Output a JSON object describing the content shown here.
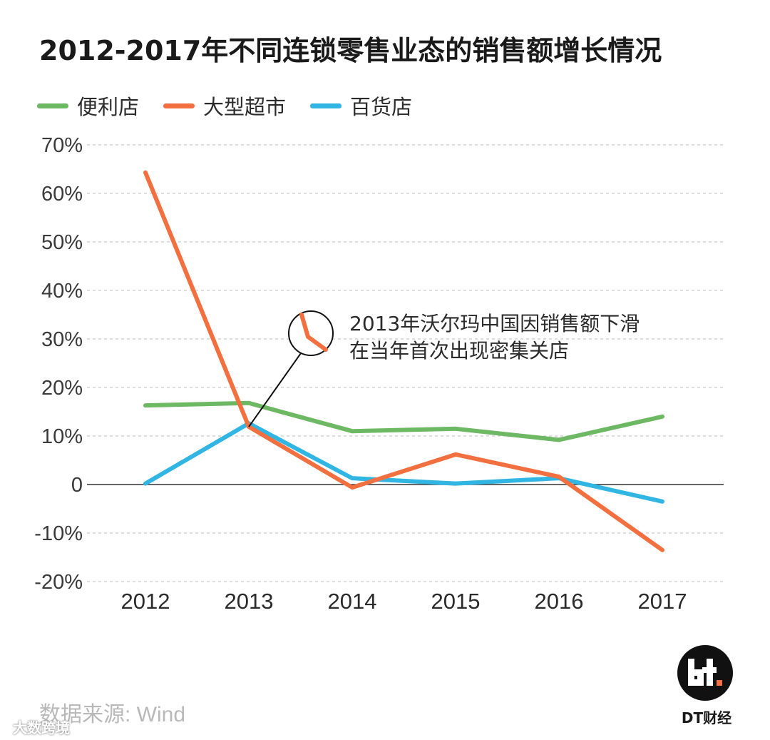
{
  "title": "2012-2017年不同连锁零售业态的销售额增长情况",
  "legend": [
    {
      "label": "便利店",
      "color": "#6db862"
    },
    {
      "label": "大型超市",
      "color": "#f2703f"
    },
    {
      "label": "百货店",
      "color": "#31b5e3"
    }
  ],
  "annotation": {
    "line1": "2013年沃尔玛中国因销售额下滑",
    "line2": "在当年首次出现密集关店"
  },
  "source": "数据来源: Wind",
  "logo_label": "DT财经",
  "watermark": "大数跨境",
  "chart_data": {
    "type": "line",
    "categories": [
      "2012",
      "2013",
      "2014",
      "2015",
      "2016",
      "2017"
    ],
    "y_tick_labels": [
      "70%",
      "60%",
      "50%",
      "40%",
      "30%",
      "20%",
      "10%",
      "0",
      "-10%",
      "-20%"
    ],
    "ylim": [
      -20,
      70
    ],
    "grid": true,
    "legend_position": "top-left",
    "series": [
      {
        "name": "便利店",
        "color": "#6db862",
        "values": [
          16.3,
          16.8,
          11.0,
          11.5,
          9.2,
          14.0
        ]
      },
      {
        "name": "大型超市",
        "color": "#f2703f",
        "values": [
          64.3,
          11.9,
          -0.6,
          6.2,
          1.6,
          -13.5
        ]
      },
      {
        "name": "百货店",
        "color": "#31b5e3",
        "values": [
          0.2,
          12.6,
          1.3,
          0.2,
          1.3,
          -3.5
        ]
      }
    ]
  }
}
